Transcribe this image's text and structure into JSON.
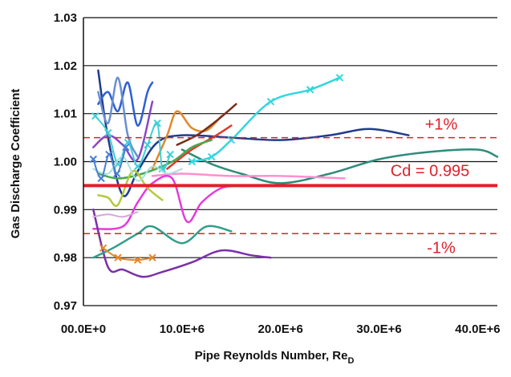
{
  "chart_data": {
    "type": "line",
    "xlabel": "Pipe Reynolds Number, Re",
    "xlabel_sub": "D",
    "ylabel": "Gas Discharge Coefficient",
    "xlim": [
      0,
      42000000
    ],
    "ylim": [
      0.97,
      1.03
    ],
    "x_ticks": [
      0,
      10000000,
      20000000,
      30000000,
      40000000
    ],
    "x_tick_labels": [
      "00.0E+0",
      "10.0E+6",
      "20.0E+6",
      "30.0E+6",
      "40.0E+6"
    ],
    "y_ticks": [
      0.97,
      0.98,
      0.99,
      1.0,
      1.01,
      1.02,
      1.03
    ],
    "y_tick_labels": [
      "0.97",
      "0.98",
      "0.99",
      "1.00",
      "1.01",
      "1.02",
      "1.03"
    ],
    "grid": true,
    "reference_lines": [
      {
        "label": "Cd = 0.995",
        "y": 0.995,
        "style": "solid",
        "color": "#e0202a"
      },
      {
        "label": "+1%",
        "y": 1.005,
        "style": "dashed",
        "color": "#e0202a"
      },
      {
        "label": "-1%",
        "y": 0.985,
        "style": "dashed",
        "color": "#e0202a"
      }
    ],
    "series": [
      {
        "color": "#1f3b8f",
        "width": 2.5,
        "marker": false,
        "points": [
          [
            1500000,
            1.019
          ],
          [
            2500000,
            1.005
          ],
          [
            4000000,
            0.993
          ],
          [
            5500000,
            0.998
          ],
          [
            7500000,
            1.004
          ],
          [
            10000000,
            1.0055
          ],
          [
            15000000,
            1.005
          ],
          [
            20000000,
            1.0045
          ],
          [
            25000000,
            1.0055
          ],
          [
            29000000,
            1.0068
          ],
          [
            33000000,
            1.0055
          ]
        ]
      },
      {
        "color": "#2e8b7a",
        "width": 2.5,
        "marker": false,
        "points": [
          [
            10000000,
            1.0025
          ],
          [
            13000000,
            0.9995
          ],
          [
            16000000,
            0.9975
          ],
          [
            20000000,
            0.9955
          ],
          [
            25000000,
            0.9975
          ],
          [
            30000000,
            1.0005
          ],
          [
            35000000,
            1.002
          ],
          [
            40000000,
            1.0025
          ],
          [
            42000000,
            1.001
          ]
        ]
      },
      {
        "color": "#33d6e0",
        "width": 2.5,
        "marker": true,
        "points": [
          [
            11000000,
            1.0
          ],
          [
            13000000,
            1.001
          ],
          [
            15000000,
            1.0045
          ],
          [
            19000000,
            1.0125
          ],
          [
            23000000,
            1.015
          ],
          [
            26000000,
            1.0175
          ]
        ]
      },
      {
        "color": "#ff8fd0",
        "width": 2.5,
        "marker": false,
        "points": [
          [
            7000000,
            0.997
          ],
          [
            10000000,
            0.9975
          ],
          [
            15000000,
            0.997
          ],
          [
            20000000,
            0.997
          ],
          [
            26500000,
            0.9965
          ]
        ]
      },
      {
        "color": "#e63adc",
        "width": 2.5,
        "marker": false,
        "points": [
          [
            1000000,
            0.986
          ],
          [
            4000000,
            0.9865
          ],
          [
            5500000,
            0.9915
          ],
          [
            7000000,
            0.9955
          ],
          [
            9000000,
            0.9965
          ],
          [
            10500000,
            0.9875
          ],
          [
            12000000,
            0.9915
          ],
          [
            14000000,
            0.9945
          ],
          [
            16000000,
            0.995
          ]
        ]
      },
      {
        "color": "#7b2fa8",
        "width": 2.5,
        "marker": false,
        "points": [
          [
            1000000,
            0.99
          ],
          [
            2500000,
            0.978
          ],
          [
            4000000,
            0.9775
          ],
          [
            6000000,
            0.976
          ],
          [
            8000000,
            0.977
          ],
          [
            11000000,
            0.979
          ],
          [
            14000000,
            0.9815
          ],
          [
            17000000,
            0.9805
          ],
          [
            19000000,
            0.98
          ]
        ]
      },
      {
        "color": "#2f9e8a",
        "width": 2.5,
        "marker": false,
        "points": [
          [
            1000000,
            0.98
          ],
          [
            3000000,
            0.982
          ],
          [
            5500000,
            0.985
          ],
          [
            7000000,
            0.9865
          ],
          [
            10000000,
            0.983
          ],
          [
            12500000,
            0.9865
          ],
          [
            15000000,
            0.9855
          ]
        ]
      },
      {
        "color": "#e3872b",
        "width": 2.5,
        "marker": false,
        "points": [
          [
            7000000,
            0.9985
          ],
          [
            8500000,
            1.0055
          ],
          [
            9500000,
            1.0105
          ],
          [
            11000000,
            1.007
          ],
          [
            12500000,
            1.0065
          ],
          [
            14000000,
            1.0095
          ]
        ]
      },
      {
        "color": "#e3872b",
        "width": 2.0,
        "marker": true,
        "points": [
          [
            2000000,
            0.982
          ],
          [
            3500000,
            0.98
          ],
          [
            5500000,
            0.9795
          ],
          [
            7000000,
            0.98
          ]
        ]
      },
      {
        "color": "#7a2d1d",
        "width": 2.5,
        "marker": false,
        "points": [
          [
            9500000,
            1.0035
          ],
          [
            11500000,
            1.0055
          ],
          [
            13500000,
            1.0085
          ],
          [
            15500000,
            1.012
          ]
        ]
      },
      {
        "color": "#e03b2b",
        "width": 2.5,
        "marker": false,
        "points": [
          [
            8500000,
            0.9985
          ],
          [
            11000000,
            1.0025
          ],
          [
            13500000,
            1.0055
          ],
          [
            15000000,
            1.0075
          ]
        ]
      },
      {
        "color": "#4aa84f",
        "width": 2.5,
        "marker": false,
        "points": [
          [
            1500000,
            0.9975
          ],
          [
            3500000,
            0.9965
          ],
          [
            6000000,
            0.9975
          ],
          [
            9000000,
            1.0
          ],
          [
            11000000,
            1.003
          ],
          [
            13000000,
            1.0045
          ]
        ]
      },
      {
        "color": "#b5c93a",
        "width": 2.5,
        "marker": false,
        "points": [
          [
            1500000,
            0.993
          ],
          [
            2500000,
            0.9925
          ],
          [
            3500000,
            0.991
          ],
          [
            5000000,
            0.998
          ],
          [
            6500000,
            0.9945
          ],
          [
            8000000,
            0.992
          ]
        ]
      },
      {
        "color": "#2f5fd6",
        "width": 2.5,
        "marker": false,
        "points": [
          [
            1500000,
            1.012
          ],
          [
            2500000,
            1.0145
          ],
          [
            3500000,
            1.0105
          ],
          [
            4500000,
            1.0165
          ],
          [
            5500000,
            1.0075
          ],
          [
            6500000,
            1.0145
          ],
          [
            7000000,
            1.0165
          ]
        ]
      },
      {
        "color": "#8a46c8",
        "width": 2.5,
        "marker": false,
        "points": [
          [
            1000000,
            1.003
          ],
          [
            2500000,
            1.0055
          ],
          [
            4000000,
            1.0035
          ],
          [
            5500000,
            1.0005
          ],
          [
            7000000,
            1.0125
          ]
        ]
      },
      {
        "color": "#6a8fd0",
        "width": 2.5,
        "marker": false,
        "points": [
          [
            1500000,
            1.0145
          ],
          [
            2500000,
            1.008
          ],
          [
            3500000,
            1.0175
          ],
          [
            4500000,
            1.0055
          ],
          [
            5500000,
            1.001
          ]
        ]
      },
      {
        "color": "#3fcfd6",
        "width": 2.0,
        "marker": true,
        "points": [
          [
            1200000,
            1.0095
          ],
          [
            2500000,
            1.006
          ],
          [
            3500000,
            0.9995
          ],
          [
            4500000,
            1.004
          ],
          [
            5500000,
            0.999
          ],
          [
            6500000,
            1.0035
          ],
          [
            7500000,
            1.008
          ],
          [
            8000000,
            0.9985
          ],
          [
            8800000,
            1.0015
          ]
        ]
      },
      {
        "color": "#a8e0e0",
        "width": 2.0,
        "marker": false,
        "points": [
          [
            1000000,
            0.9985
          ],
          [
            2500000,
            0.9975
          ],
          [
            4000000,
            1.001
          ],
          [
            5500000,
            0.996
          ],
          [
            7000000,
            0.999
          ],
          [
            8500000,
            0.9975
          ],
          [
            10000000,
            0.9985
          ]
        ]
      },
      {
        "color": "#d9a7d9",
        "width": 2.0,
        "marker": false,
        "points": [
          [
            1000000,
            0.9885
          ],
          [
            2500000,
            0.989
          ],
          [
            4000000,
            0.9885
          ],
          [
            5500000,
            0.9895
          ]
        ]
      },
      {
        "color": "#4a7fd6",
        "width": 2.0,
        "marker": true,
        "points": [
          [
            1000000,
            1.0005
          ],
          [
            1800000,
            0.9965
          ],
          [
            2600000,
            1.0015
          ],
          [
            3400000,
            0.9975
          ],
          [
            4300000,
            1.003
          ]
        ]
      }
    ]
  }
}
